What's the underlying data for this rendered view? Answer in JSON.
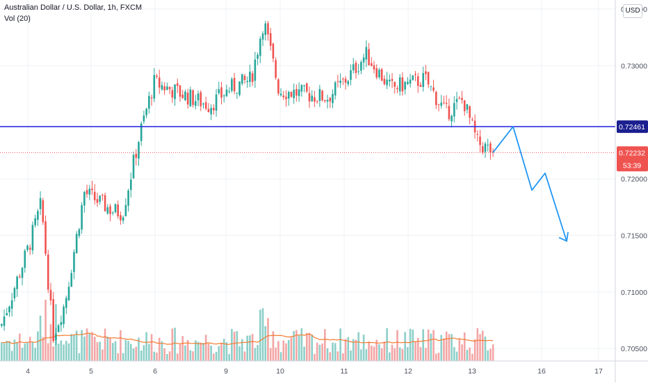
{
  "header": {
    "symbol_title": "Australian Dollar / U.S. Dollar, 1h, FXCM",
    "volume_indicator": "Vol (20)",
    "currency_button": "USD"
  },
  "colors": {
    "bull": "#26a69a",
    "bear": "#ef5350",
    "bull_volume": "#8ccfc8",
    "bear_volume": "#f3a5a5",
    "volume_ma": "#f57c2e",
    "support_line": "#2e2ee6",
    "projection": "#2196f3",
    "grid": "#eef0f4",
    "axis_text": "#4a4f5c"
  },
  "chart_data": {
    "type": "candlestick",
    "title": "Australian Dollar / U.S. Dollar, 1h, FXCM",
    "grid": true,
    "price_axis": {
      "side": "right",
      "ylim": [
        0.702,
        0.7358
      ],
      "ticks": [
        "0.73500",
        "0.73000",
        "0.72000",
        "0.71500",
        "0.71000",
        "0.70500"
      ],
      "tick_values": [
        0.735,
        0.73,
        0.72,
        0.715,
        0.71,
        0.705
      ]
    },
    "time_axis": {
      "labels": [
        "4",
        "5",
        "6",
        "9",
        "10",
        "11",
        "12",
        "13",
        "16",
        "17"
      ],
      "label_positions": [
        40,
        131,
        223,
        325,
        403,
        495,
        587,
        679,
        779,
        861
      ],
      "xlim": [
        0,
        885
      ]
    },
    "candles_summary": {
      "first_close": 0.707,
      "high": 0.734,
      "low": 0.7055,
      "last_close": 0.72232
    },
    "support_level": {
      "value": 0.72461,
      "label": "0.72461"
    },
    "last_price": {
      "value": 0.72232,
      "label": "0.72232",
      "countdown": "53:39"
    },
    "volume": {
      "indicator": "Vol (20)",
      "ma_period": 20
    },
    "projection_path": [
      {
        "x": 709,
        "y": 0.72232
      },
      {
        "x": 738,
        "y": 0.72461
      },
      {
        "x": 765,
        "y": 0.719
      },
      {
        "x": 784,
        "y": 0.7205
      },
      {
        "x": 815,
        "y": 0.7145
      }
    ]
  }
}
